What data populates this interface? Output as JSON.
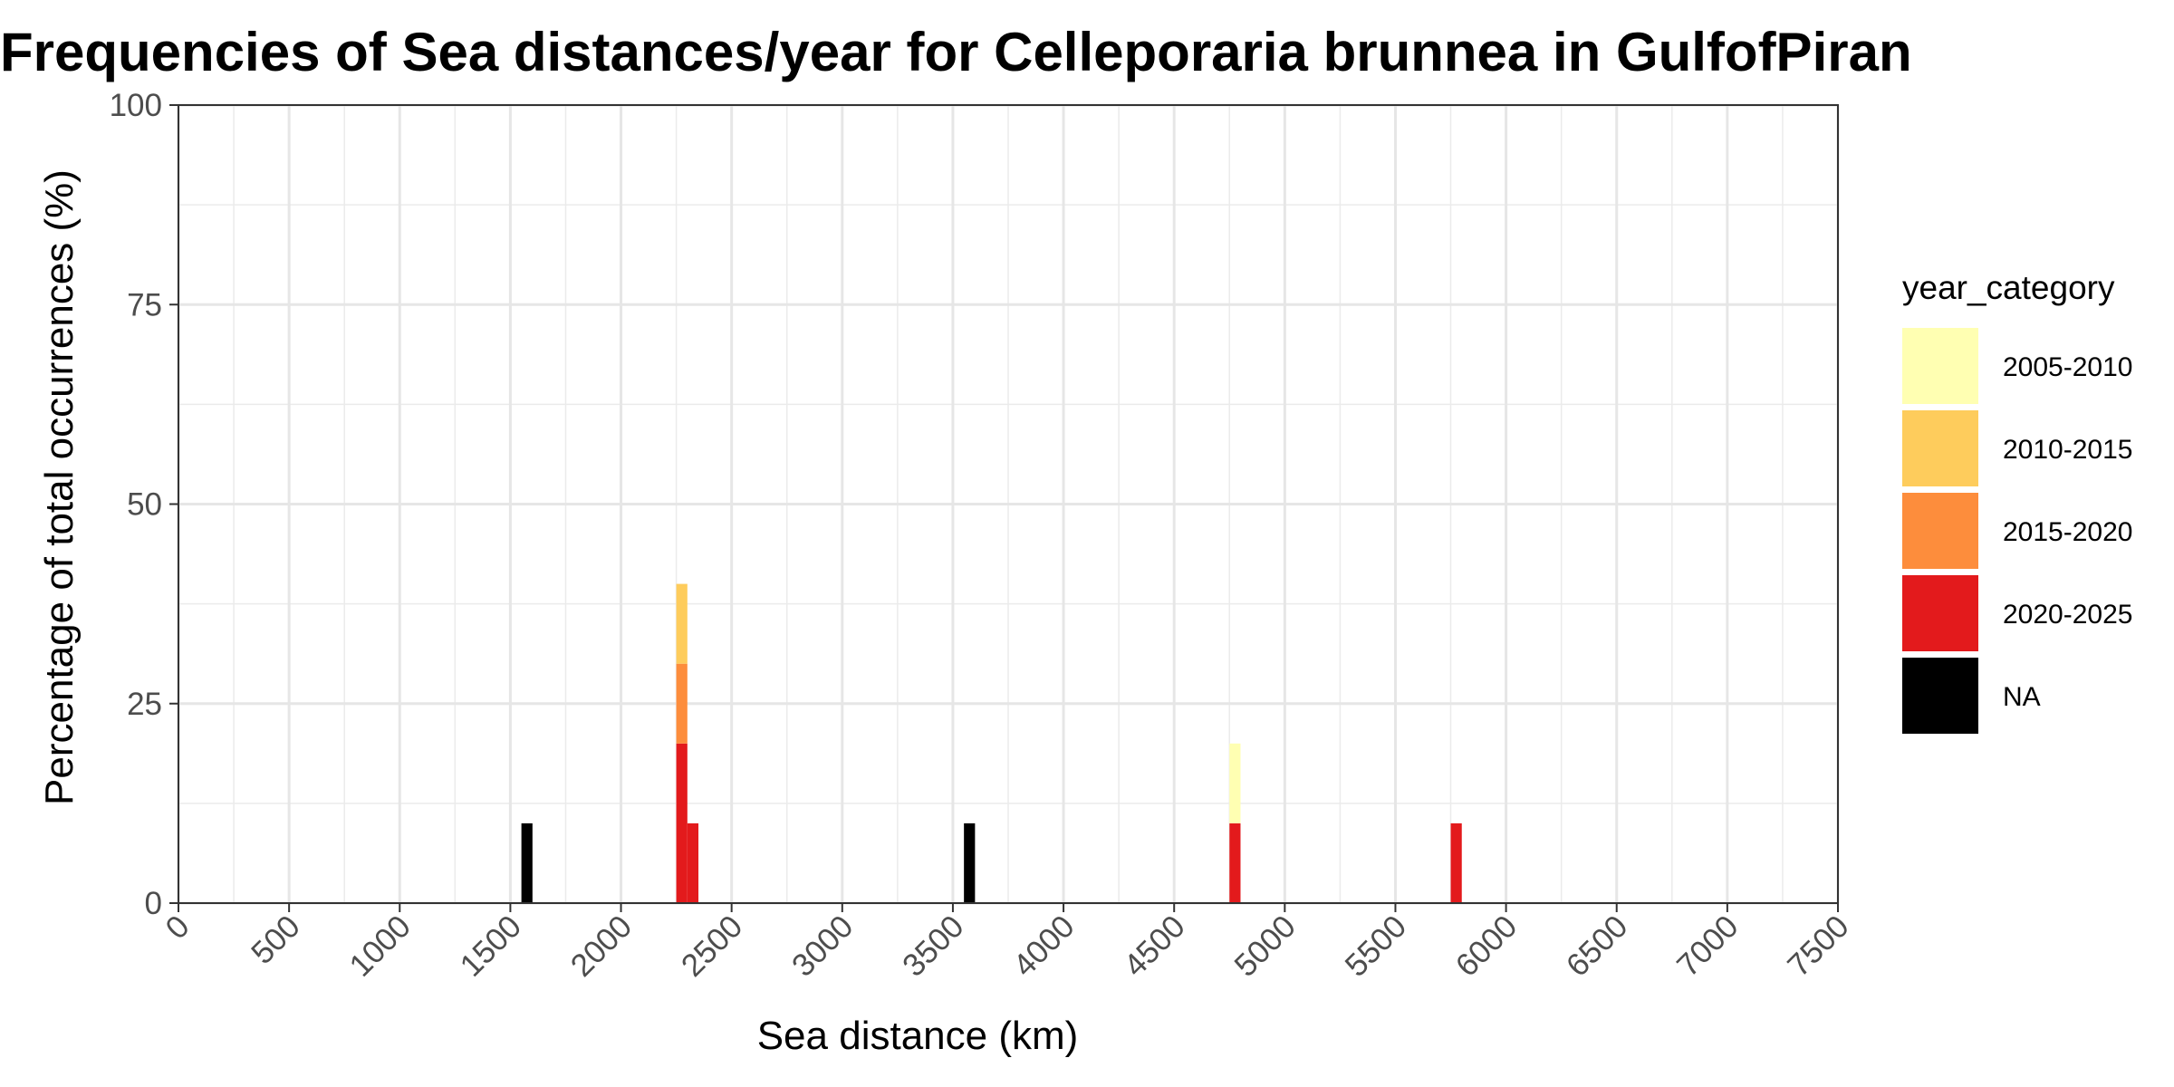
{
  "chart_data": {
    "type": "bar",
    "title": "Frequencies of Sea distances/year for Celleporaria brunnea in GulfofPiran",
    "xlabel": "Sea distance (km)",
    "ylabel": "Percentage of total occurrences (%)",
    "xlim": [
      0,
      7500
    ],
    "ylim": [
      0,
      100
    ],
    "x_ticks": [
      0,
      500,
      1000,
      1500,
      2000,
      2500,
      3000,
      3500,
      4000,
      4500,
      5000,
      5500,
      6000,
      6500,
      7000,
      7500
    ],
    "y_ticks": [
      0,
      25,
      50,
      75,
      100
    ],
    "grid": true,
    "stacked": true,
    "bin_width_km": 50,
    "legend": {
      "title": "year_category",
      "position": "right",
      "entries": [
        {
          "label": "2005-2010",
          "color": "#FFFFB2"
        },
        {
          "label": "2010-2015",
          "color": "#FECC5C"
        },
        {
          "label": "2015-2020",
          "color": "#FD8D3C"
        },
        {
          "label": "2020-2025",
          "color": "#E31A1C"
        },
        {
          "label": "NA",
          "color": "#000000"
        }
      ]
    },
    "bars": [
      {
        "x": 1575,
        "category": "NA",
        "value": 10
      },
      {
        "x": 2275,
        "category": "2020-2025",
        "value": 20
      },
      {
        "x": 2275,
        "category": "2015-2020",
        "value": 10
      },
      {
        "x": 2275,
        "category": "2010-2015",
        "value": 10
      },
      {
        "x": 2325,
        "category": "2020-2025",
        "value": 10
      },
      {
        "x": 3575,
        "category": "NA",
        "value": 10
      },
      {
        "x": 4775,
        "category": "2020-2025",
        "value": 10
      },
      {
        "x": 4775,
        "category": "2005-2010",
        "value": 10
      },
      {
        "x": 5775,
        "category": "2020-2025",
        "value": 10
      }
    ]
  }
}
